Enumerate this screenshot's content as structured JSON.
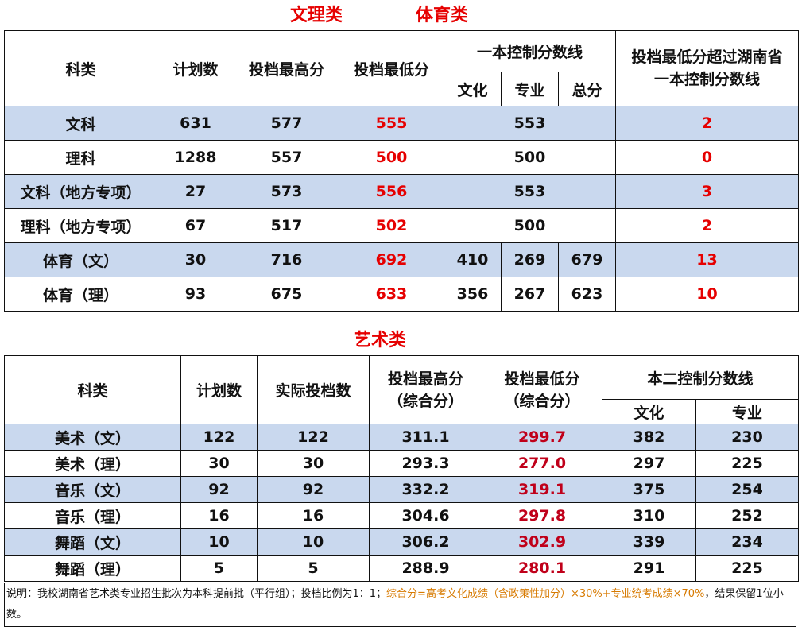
{
  "titles": {
    "wenli": "文理类",
    "tiyu": "体育类",
    "yishu": "艺术类"
  },
  "table1": {
    "headers": {
      "kelei": "科类",
      "jihua": "计划数",
      "max": "投档最高分",
      "min": "投档最低分",
      "control": "一本控制分数线",
      "wenhua": "文化",
      "zhuanye": "专业",
      "zongfen": "总分",
      "exceed": "投档最低分超过湖南省一本控制分数线"
    },
    "rows": [
      {
        "kelei": "文科",
        "jihua": "631",
        "max": "577",
        "min": "555",
        "control": "553",
        "exceed": "2"
      },
      {
        "kelei": "理科",
        "jihua": "1288",
        "max": "557",
        "min": "500",
        "control": "500",
        "exceed": "0"
      },
      {
        "kelei": "文科（地方专项）",
        "jihua": "27",
        "max": "573",
        "min": "556",
        "control": "553",
        "exceed": "3"
      },
      {
        "kelei": "理科（地方专项）",
        "jihua": "67",
        "max": "517",
        "min": "502",
        "control": "500",
        "exceed": "2"
      },
      {
        "kelei": "体育（文）",
        "jihua": "30",
        "max": "716",
        "min": "692",
        "wenhua": "410",
        "zhuanye": "269",
        "zongfen": "679",
        "exceed": "13"
      },
      {
        "kelei": "体育（理）",
        "jihua": "93",
        "max": "675",
        "min": "633",
        "wenhua": "356",
        "zhuanye": "267",
        "zongfen": "623",
        "exceed": "10"
      }
    ]
  },
  "table2": {
    "headers": {
      "kelei": "科类",
      "jihua": "计划数",
      "shiji": "实际投档数",
      "max": "投档最高分（综合分）",
      "min": "投档最低分（综合分）",
      "control": "本二控制分数线",
      "wenhua": "文化",
      "zhuanye": "专业"
    },
    "rows": [
      {
        "kelei": "美术（文）",
        "jihua": "122",
        "shiji": "122",
        "max": "311.1",
        "min": "299.7",
        "wenhua": "382",
        "zhuanye": "230"
      },
      {
        "kelei": "美术（理）",
        "jihua": "30",
        "shiji": "30",
        "max": "293.3",
        "min": "277.0",
        "wenhua": "297",
        "zhuanye": "225"
      },
      {
        "kelei": "音乐（文）",
        "jihua": "92",
        "shiji": "92",
        "max": "332.2",
        "min": "319.1",
        "wenhua": "375",
        "zhuanye": "254"
      },
      {
        "kelei": "音乐（理）",
        "jihua": "16",
        "shiji": "16",
        "max": "304.6",
        "min": "297.8",
        "wenhua": "310",
        "zhuanye": "252"
      },
      {
        "kelei": "舞蹈（文）",
        "jihua": "10",
        "shiji": "10",
        "max": "306.2",
        "min": "302.9",
        "wenhua": "339",
        "zhuanye": "234"
      },
      {
        "kelei": "舞蹈（理）",
        "jihua": "5",
        "shiji": "5",
        "max": "288.9",
        "min": "280.1",
        "wenhua": "291",
        "zhuanye": "225"
      }
    ]
  },
  "note": {
    "part1": "说明：我校湖南省艺术类专业招生批次为本科提前批（平行组）；投档比例为1：1；",
    "part2": "综合分=高考文化成绩（含政策性加分）×30%+专业统考成绩×70%",
    "part3": "，结果保留1位小数。"
  },
  "colors": {
    "red": "#e60000",
    "darkred": "#c0001a",
    "orange": "#d77a00",
    "row_blue": "#c9d8ee"
  }
}
